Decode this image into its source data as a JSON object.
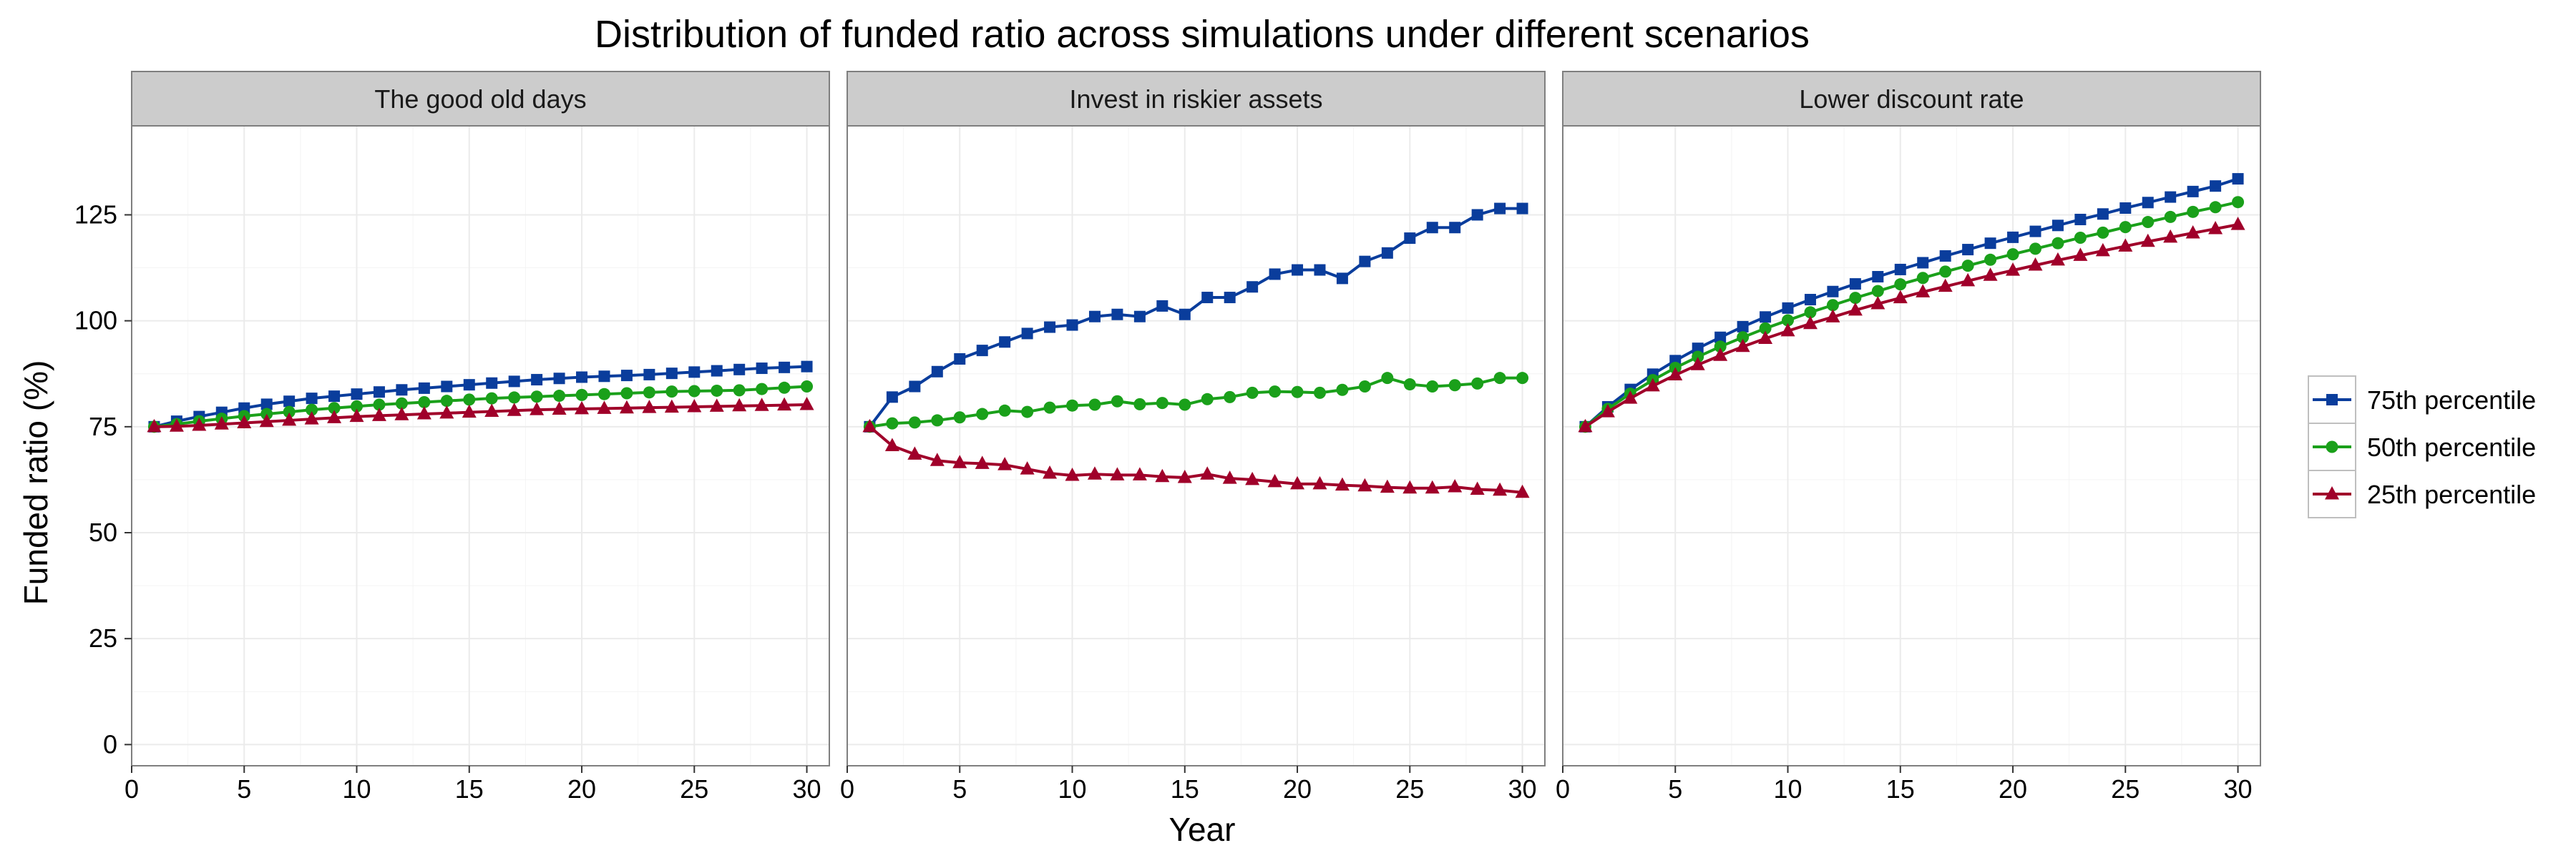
{
  "chart_data": {
    "type": "line",
    "title": "Distribution of funded ratio across simulations under different scenarios",
    "xlabel": "Year",
    "ylabel": "Funded ratio (%)",
    "xlim": [
      0,
      31
    ],
    "ylim": [
      -5,
      146
    ],
    "x_ticks": [
      0,
      5,
      10,
      15,
      20,
      25,
      30
    ],
    "y_ticks": [
      0,
      25,
      50,
      75,
      100,
      125
    ],
    "grid": true,
    "legend_position": "right",
    "series_colors": {
      "75th percentile": "#0a3d9c",
      "50th percentile": "#1aa01a",
      "25th percentile": "#a0002a"
    },
    "legend": [
      {
        "name": "75th percentile",
        "color": "#0a3d9c",
        "marker": "square"
      },
      {
        "name": "50th percentile",
        "color": "#1aa01a",
        "marker": "circle"
      },
      {
        "name": "25th percentile",
        "color": "#a0002a",
        "marker": "triangle"
      }
    ],
    "panels": [
      {
        "label": "The good old days",
        "x": [
          1,
          2,
          3,
          4,
          5,
          6,
          7,
          8,
          9,
          10,
          11,
          12,
          13,
          14,
          15,
          16,
          17,
          18,
          19,
          20,
          21,
          22,
          23,
          24,
          25,
          26,
          27,
          28,
          29,
          30
        ],
        "series": [
          {
            "name": "75th percentile",
            "values": [
              75,
              76.3,
              77.4,
              78.4,
              79.4,
              80.3,
              81.0,
              81.7,
              82.2,
              82.7,
              83.2,
              83.7,
              84.1,
              84.5,
              84.9,
              85.3,
              85.7,
              86.1,
              86.4,
              86.7,
              86.9,
              87.1,
              87.3,
              87.6,
              87.9,
              88.2,
              88.5,
              88.8,
              89.0,
              89.2
            ]
          },
          {
            "name": "50th percentile",
            "values": [
              75,
              75.6,
              76.3,
              76.9,
              77.5,
              78.0,
              78.5,
              79.0,
              79.4,
              79.8,
              80.2,
              80.5,
              80.8,
              81.1,
              81.4,
              81.7,
              81.9,
              82.1,
              82.3,
              82.5,
              82.7,
              82.9,
              83.1,
              83.3,
              83.4,
              83.5,
              83.6,
              83.9,
              84.2,
              84.5
            ]
          },
          {
            "name": "25th percentile",
            "values": [
              75,
              75.1,
              75.3,
              75.6,
              75.9,
              76.2,
              76.5,
              76.8,
              77.1,
              77.4,
              77.6,
              77.8,
              78.0,
              78.2,
              78.4,
              78.6,
              78.8,
              79.0,
              79.1,
              79.2,
              79.3,
              79.4,
              79.5,
              79.6,
              79.7,
              79.8,
              79.9,
              80.0,
              80.1,
              80.2
            ]
          }
        ]
      },
      {
        "label": "Invest in riskier assets",
        "x": [
          1,
          2,
          3,
          4,
          5,
          6,
          7,
          8,
          9,
          10,
          11,
          12,
          13,
          14,
          15,
          16,
          17,
          18,
          19,
          20,
          21,
          22,
          23,
          24,
          25,
          26,
          27,
          28,
          29,
          30
        ],
        "series": [
          {
            "name": "75th percentile",
            "values": [
              75,
              82,
              84.5,
              88,
              91,
              93,
              95,
              97,
              98.5,
              99,
              101,
              101.5,
              101,
              103.5,
              101.5,
              105.5,
              105.5,
              108,
              111,
              112,
              112,
              110,
              114,
              116,
              119.5,
              122,
              122,
              125,
              126.5,
              126.5
            ]
          },
          {
            "name": "50th percentile",
            "values": [
              75,
              75.8,
              76,
              76.5,
              77.2,
              78,
              78.8,
              78.5,
              79.5,
              80,
              80.2,
              81,
              80.3,
              80.6,
              80.2,
              81.5,
              82,
              83,
              83.3,
              83.2,
              83,
              83.7,
              84.5,
              86.5,
              85,
              84.5,
              84.8,
              85.2,
              86.5,
              86.5
            ]
          },
          {
            "name": "25th percentile",
            "values": [
              75,
              70.5,
              68.5,
              67,
              66.5,
              66.3,
              66,
              65,
              64,
              63.5,
              63.8,
              63.6,
              63.6,
              63.2,
              63,
              63.8,
              62.8,
              62.5,
              62,
              61.5,
              61.5,
              61.2,
              61,
              60.7,
              60.5,
              60.5,
              60.8,
              60.2,
              60,
              59.5
            ]
          }
        ]
      },
      {
        "label": "Lower discount rate",
        "x": [
          1,
          2,
          3,
          4,
          5,
          6,
          7,
          8,
          9,
          10,
          11,
          12,
          13,
          14,
          15,
          16,
          17,
          18,
          19,
          20,
          21,
          22,
          23,
          24,
          25,
          26,
          27,
          28,
          29,
          30
        ],
        "series": [
          {
            "name": "75th percentile",
            "values": [
              75,
              79.7,
              83.8,
              87.4,
              90.6,
              93.5,
              96.1,
              98.6,
              100.9,
              103.0,
              105.0,
              106.9,
              108.7,
              110.4,
              112.1,
              113.7,
              115.3,
              116.8,
              118.3,
              119.7,
              121.1,
              122.5,
              123.9,
              125.2,
              126.6,
              127.9,
              129.2,
              130.5,
              131.8,
              133.5
            ]
          },
          {
            "name": "50th percentile",
            "values": [
              75,
              79.2,
              82.8,
              86.0,
              88.9,
              91.5,
              93.9,
              96.1,
              98.2,
              100.1,
              102.0,
              103.7,
              105.4,
              107.0,
              108.6,
              110.1,
              111.6,
              113.0,
              114.4,
              115.7,
              117.0,
              118.3,
              119.6,
              120.8,
              122.1,
              123.3,
              124.5,
              125.7,
              126.8,
              128.0
            ]
          },
          {
            "name": "25th percentile",
            "values": [
              75,
              78.5,
              81.7,
              84.6,
              87.2,
              89.6,
              91.8,
              93.9,
              95.8,
              97.6,
              99.3,
              100.9,
              102.5,
              104.0,
              105.4,
              106.8,
              108.1,
              109.4,
              110.7,
              111.9,
              113.1,
              114.3,
              115.4,
              116.5,
              117.6,
              118.7,
              119.7,
              120.7,
              121.7,
              122.7
            ]
          }
        ]
      }
    ]
  }
}
